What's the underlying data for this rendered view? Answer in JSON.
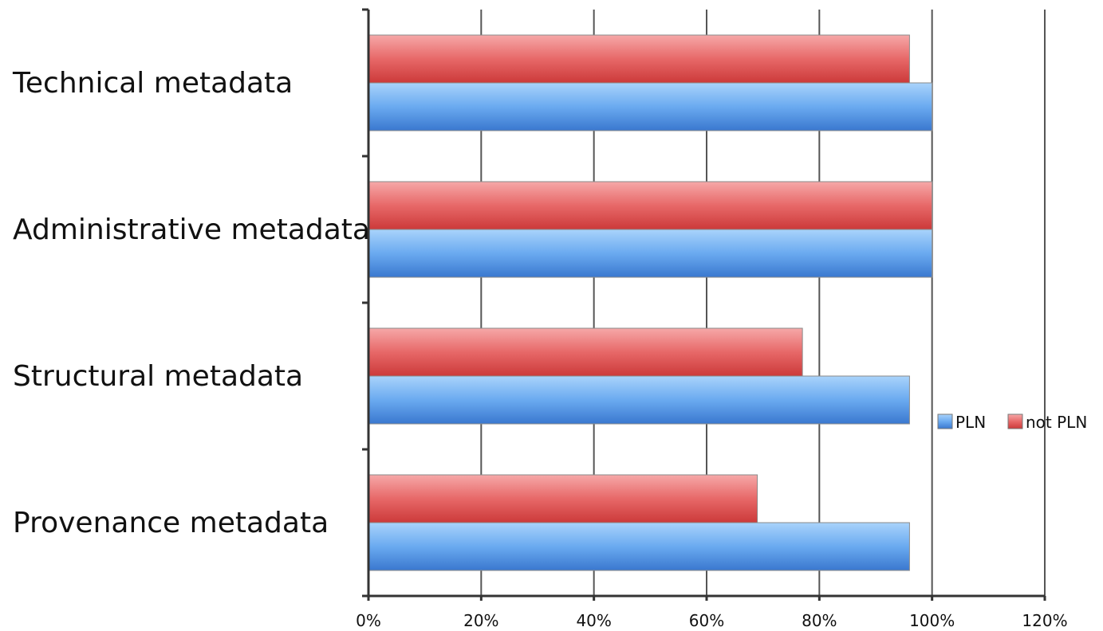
{
  "chart_data": {
    "type": "bar",
    "orientation": "horizontal",
    "categories": [
      "Technical metadata",
      "Administrative metadata",
      "Structural metadata",
      "Provenance metadata"
    ],
    "series": [
      {
        "name": "PLN",
        "values": [
          100,
          100,
          96,
          96
        ],
        "color": "#4a8fe0"
      },
      {
        "name": "not PLN",
        "values": [
          96,
          100,
          77,
          69
        ],
        "color": "#e05050"
      }
    ],
    "xlim": [
      0,
      120
    ],
    "xticks": [
      "0%",
      "20%",
      "40%",
      "60%",
      "80%",
      "100%",
      "120%"
    ],
    "grid": "vertical",
    "legend_position": "right"
  }
}
